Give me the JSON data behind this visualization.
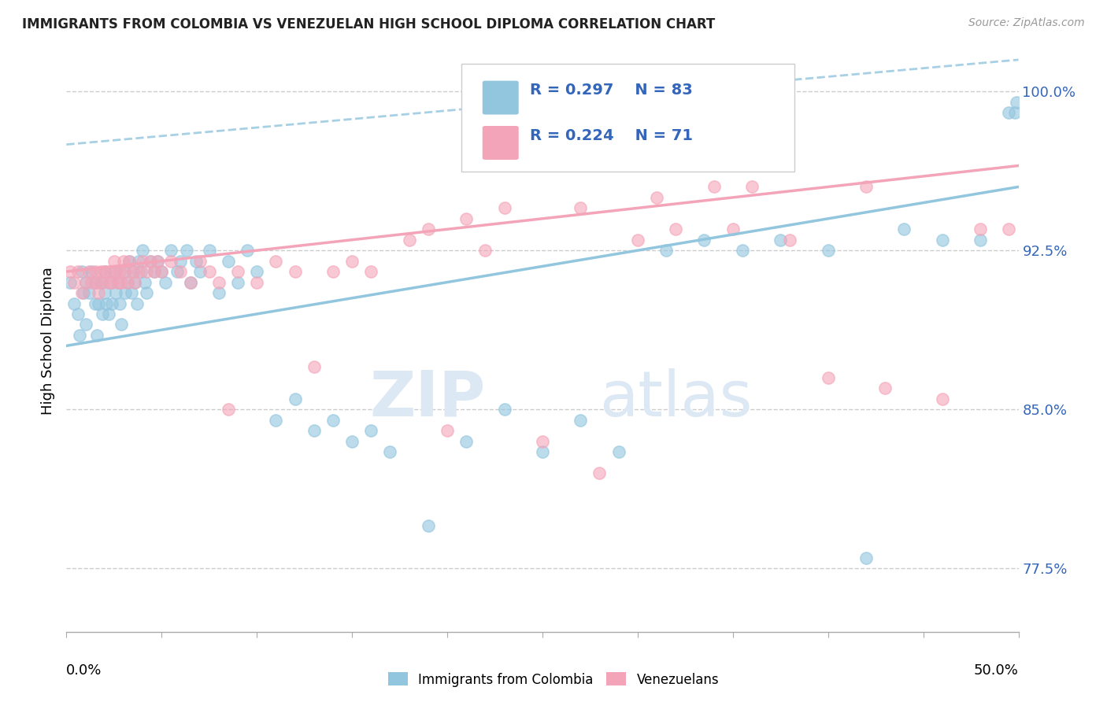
{
  "title": "IMMIGRANTS FROM COLOMBIA VS VENEZUELAN HIGH SCHOOL DIPLOMA CORRELATION CHART",
  "source": "Source: ZipAtlas.com",
  "ylabel": "High School Diploma",
  "yticks": [
    77.5,
    85.0,
    92.5,
    100.0
  ],
  "ytick_labels": [
    "77.5%",
    "85.0%",
    "92.5%",
    "100.0%"
  ],
  "xmin": 0.0,
  "xmax": 0.5,
  "ymin": 74.5,
  "ymax": 102.0,
  "colombia_color": "#92c5de",
  "venezuela_color": "#f4a4b8",
  "colombia_R": 0.297,
  "colombia_N": 83,
  "venezuela_R": 0.224,
  "venezuela_N": 71,
  "legend_text_color": "#3366bb",
  "colombia_scatter_x": [
    0.002,
    0.004,
    0.006,
    0.007,
    0.008,
    0.009,
    0.01,
    0.01,
    0.012,
    0.013,
    0.015,
    0.015,
    0.016,
    0.017,
    0.018,
    0.019,
    0.02,
    0.02,
    0.021,
    0.022,
    0.023,
    0.024,
    0.025,
    0.026,
    0.027,
    0.028,
    0.029,
    0.03,
    0.031,
    0.032,
    0.033,
    0.034,
    0.035,
    0.036,
    0.037,
    0.038,
    0.039,
    0.04,
    0.041,
    0.042,
    0.044,
    0.046,
    0.048,
    0.05,
    0.052,
    0.055,
    0.058,
    0.06,
    0.063,
    0.065,
    0.068,
    0.07,
    0.075,
    0.08,
    0.085,
    0.09,
    0.095,
    0.1,
    0.11,
    0.12,
    0.13,
    0.14,
    0.15,
    0.16,
    0.17,
    0.19,
    0.21,
    0.23,
    0.25,
    0.27,
    0.29,
    0.315,
    0.335,
    0.355,
    0.375,
    0.4,
    0.42,
    0.44,
    0.46,
    0.48,
    0.495,
    0.498,
    0.499
  ],
  "colombia_scatter_y": [
    91.0,
    90.0,
    89.5,
    88.5,
    91.5,
    90.5,
    89.0,
    91.0,
    90.5,
    91.5,
    90.0,
    91.0,
    88.5,
    90.0,
    91.0,
    89.5,
    90.5,
    91.5,
    90.0,
    89.5,
    91.0,
    90.0,
    91.5,
    90.5,
    91.0,
    90.0,
    89.0,
    91.5,
    90.5,
    91.0,
    92.0,
    90.5,
    91.5,
    91.0,
    90.0,
    92.0,
    91.5,
    92.5,
    91.0,
    90.5,
    92.0,
    91.5,
    92.0,
    91.5,
    91.0,
    92.5,
    91.5,
    92.0,
    92.5,
    91.0,
    92.0,
    91.5,
    92.5,
    90.5,
    92.0,
    91.0,
    92.5,
    91.5,
    84.5,
    85.5,
    84.0,
    84.5,
    83.5,
    84.0,
    83.0,
    79.5,
    83.5,
    85.0,
    83.0,
    84.5,
    83.0,
    92.5,
    93.0,
    92.5,
    93.0,
    92.5,
    78.0,
    93.5,
    93.0,
    93.0,
    99.0,
    99.0,
    99.5
  ],
  "venezuela_scatter_x": [
    0.002,
    0.004,
    0.006,
    0.008,
    0.01,
    0.012,
    0.013,
    0.015,
    0.016,
    0.017,
    0.018,
    0.019,
    0.02,
    0.022,
    0.023,
    0.024,
    0.025,
    0.026,
    0.027,
    0.028,
    0.029,
    0.03,
    0.031,
    0.032,
    0.033,
    0.035,
    0.036,
    0.038,
    0.04,
    0.042,
    0.044,
    0.046,
    0.048,
    0.05,
    0.055,
    0.06,
    0.065,
    0.07,
    0.075,
    0.08,
    0.085,
    0.09,
    0.1,
    0.11,
    0.12,
    0.13,
    0.14,
    0.15,
    0.16,
    0.18,
    0.2,
    0.22,
    0.25,
    0.28,
    0.3,
    0.32,
    0.35,
    0.38,
    0.4,
    0.43,
    0.46,
    0.48,
    0.495,
    0.19,
    0.21,
    0.23,
    0.27,
    0.31,
    0.34,
    0.36,
    0.42
  ],
  "venezuela_scatter_y": [
    91.5,
    91.0,
    91.5,
    90.5,
    91.0,
    91.5,
    91.0,
    91.5,
    91.0,
    90.5,
    91.5,
    91.0,
    91.5,
    91.0,
    91.5,
    91.0,
    92.0,
    91.5,
    91.0,
    91.5,
    91.0,
    92.0,
    91.5,
    91.0,
    92.0,
    91.5,
    91.0,
    91.5,
    92.0,
    91.5,
    92.0,
    91.5,
    92.0,
    91.5,
    92.0,
    91.5,
    91.0,
    92.0,
    91.5,
    91.0,
    85.0,
    91.5,
    91.0,
    92.0,
    91.5,
    87.0,
    91.5,
    92.0,
    91.5,
    93.0,
    84.0,
    92.5,
    83.5,
    82.0,
    93.0,
    93.5,
    93.5,
    93.0,
    86.5,
    86.0,
    85.5,
    93.5,
    93.5,
    93.5,
    94.0,
    94.5,
    94.5,
    95.0,
    95.5,
    95.5,
    95.5
  ],
  "watermark_zip": "ZIP",
  "watermark_atlas": "atlas",
  "dashed_line_color": "#92c5de"
}
